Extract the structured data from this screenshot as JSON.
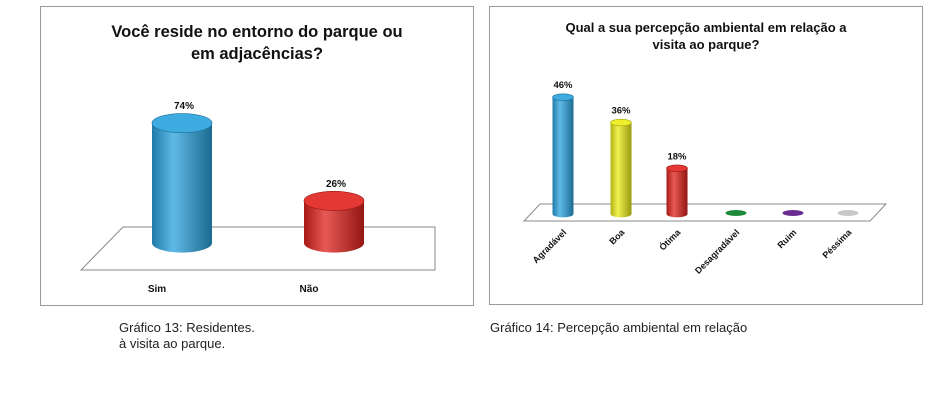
{
  "charts": [
    {
      "title": "Você reside no entorno do parque ou em adjacências?",
      "caption": "Gráfico 13: Residentes.\nà visita ao parque.",
      "chart_data": {
        "type": "bar",
        "title": "Você reside no entorno do parque ou em adjacências?",
        "categories": [
          "Sim",
          "Não"
        ],
        "values": [
          74,
          26
        ],
        "value_labels": [
          "74%",
          "26%"
        ],
        "colors": [
          "#29a3de",
          "#e0221c"
        ],
        "xlabel": "",
        "ylabel": "",
        "ylim": [
          0,
          100
        ],
        "grid": false,
        "legend": "none"
      }
    },
    {
      "title": "Qual a sua percepção ambiental em relação a visita ao parque?",
      "caption": "Gráfico 14: Percepção ambiental em relação",
      "chart_data": {
        "type": "bar",
        "title": "Qual a sua percepção ambiental em relação a visita ao parque?",
        "categories": [
          "Agradável",
          "Boa",
          "Ótima",
          "Desagradável",
          "Ruim",
          "Péssima"
        ],
        "values": [
          46,
          36,
          18,
          0,
          0,
          0
        ],
        "value_labels": [
          "46%",
          "36%",
          "18%",
          "",
          "",
          ""
        ],
        "colors": [
          "#29a3de",
          "#ecec18",
          "#e0221c",
          "#1f8a3a",
          "#6a2c91",
          "#c8c8c8"
        ],
        "xlabel": "",
        "ylabel": "",
        "ylim": [
          0,
          100
        ],
        "grid": false,
        "legend": "none"
      }
    }
  ]
}
